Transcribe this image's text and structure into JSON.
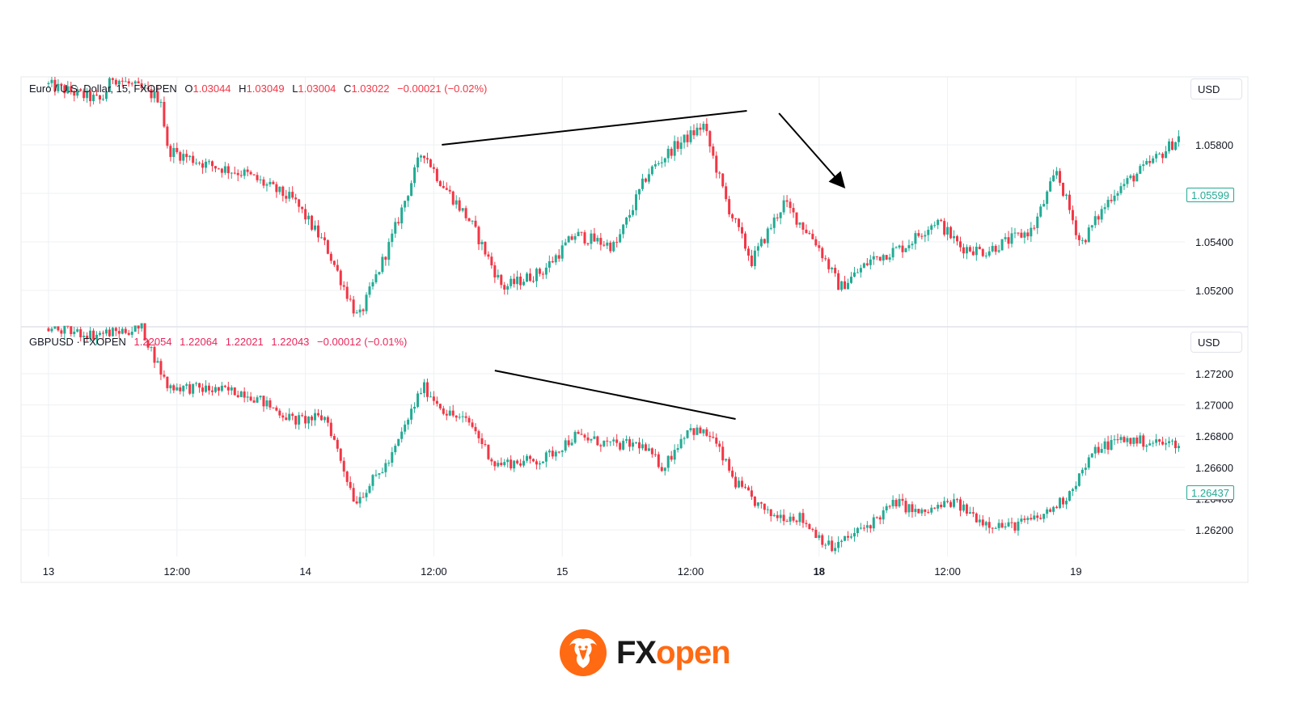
{
  "colors": {
    "up": "#22ab94",
    "down": "#f23645",
    "grid": "#eef0f3",
    "trendline": "#000000",
    "brand_orange": "#ff6a13",
    "brand_dark": "#1a1a1a"
  },
  "chart_data": [
    {
      "type": "candlestick",
      "title": "Euro / U.S. Dollar, 15, FXOPEN",
      "ohlc_header": {
        "o_label": "O",
        "o": "1.03044",
        "h_label": "H",
        "h": "1.03049",
        "l_label": "L",
        "l": "1.03004",
        "c_label": "C",
        "c": "1.03022",
        "change": "−0.00021 (−0.02%)"
      },
      "currency": "USD",
      "yticks": [
        1.058,
        1.056,
        1.054,
        1.052
      ],
      "ytick_labels": [
        "1.05800",
        "1.05600",
        "1.05400",
        "1.05200"
      ],
      "ylim": [
        1.0505,
        1.0608
      ],
      "last_price": "1.05599",
      "last_price_value": 1.05599,
      "key_points": [
        {
          "t": 0,
          "p": 1.0605
        },
        {
          "t": 3.5,
          "p": 1.0598
        },
        {
          "t": 4.2,
          "p": 1.0608
        },
        {
          "t": 7.2,
          "p": 1.0599
        },
        {
          "t": 7.6,
          "p": 1.0578
        },
        {
          "t": 10,
          "p": 1.0572
        },
        {
          "t": 12.5,
          "p": 1.0568
        },
        {
          "t": 15.5,
          "p": 1.0557
        },
        {
          "t": 17.5,
          "p": 1.0538
        },
        {
          "t": 19.5,
          "p": 1.0508
        },
        {
          "t": 21.5,
          "p": 1.054
        },
        {
          "t": 23.5,
          "p": 1.0578
        },
        {
          "t": 24.5,
          "p": 1.0566
        },
        {
          "t": 26.5,
          "p": 1.0548
        },
        {
          "t": 28.5,
          "p": 1.0521
        },
        {
          "t": 31,
          "p": 1.0528
        },
        {
          "t": 33,
          "p": 1.0543
        },
        {
          "t": 35.5,
          "p": 1.0538
        },
        {
          "t": 37.5,
          "p": 1.0568
        },
        {
          "t": 39,
          "p": 1.0578
        },
        {
          "t": 41,
          "p": 1.0588
        },
        {
          "t": 42.5,
          "p": 1.0555
        },
        {
          "t": 44,
          "p": 1.0532
        },
        {
          "t": 46,
          "p": 1.0556
        },
        {
          "t": 48,
          "p": 1.054
        },
        {
          "t": 49.5,
          "p": 1.0521
        },
        {
          "t": 51.5,
          "p": 1.0533
        },
        {
          "t": 53.5,
          "p": 1.0538
        },
        {
          "t": 55.5,
          "p": 1.0549
        },
        {
          "t": 57,
          "p": 1.0538
        },
        {
          "t": 58.5,
          "p": 1.0536
        },
        {
          "t": 61.5,
          "p": 1.0545
        },
        {
          "t": 63,
          "p": 1.0569
        },
        {
          "t": 64.5,
          "p": 1.0539
        },
        {
          "t": 66.5,
          "p": 1.056
        },
        {
          "t": 69.5,
          "p": 1.0576
        },
        {
          "t": 72,
          "p": 1.0592
        },
        {
          "t": 74,
          "p": 1.0601
        },
        {
          "t": 76,
          "p": 1.0598
        },
        {
          "t": 78,
          "p": 1.0593
        },
        {
          "t": 80,
          "p": 1.0598
        },
        {
          "t": 82,
          "p": 1.0587
        },
        {
          "t": 83.5,
          "p": 1.0592
        },
        {
          "t": 84.5,
          "p": 1.0575
        },
        {
          "t": 86,
          "p": 1.0525
        },
        {
          "t": 87.5,
          "p": 1.056
        }
      ]
    },
    {
      "type": "candlestick",
      "title": "GBPUSD · FXOPEN",
      "ohlc_header": {
        "o_label": "",
        "o": "1.22054",
        "h_label": "",
        "h": "1.22064",
        "l_label": "",
        "l": "1.22021",
        "c_label": "",
        "c": "1.22043",
        "change": "−0.00012 (−0.01%)"
      },
      "currency": "USD",
      "yticks": [
        1.272,
        1.27,
        1.268,
        1.266,
        1.264,
        1.262
      ],
      "ytick_labels": [
        "1.27200",
        "1.27000",
        "1.26800",
        "1.26600",
        "1.26400",
        "1.26200"
      ],
      "ylim": [
        1.2603,
        1.275
      ],
      "last_price": "1.26437",
      "last_price_value": 1.26437,
      "key_points": [
        {
          "t": 0,
          "p": 1.2749
        },
        {
          "t": 3,
          "p": 1.2745
        },
        {
          "t": 6,
          "p": 1.2749
        },
        {
          "t": 7.6,
          "p": 1.2712
        },
        {
          "t": 10,
          "p": 1.271
        },
        {
          "t": 12.5,
          "p": 1.2708
        },
        {
          "t": 15.5,
          "p": 1.269
        },
        {
          "t": 17.5,
          "p": 1.2692
        },
        {
          "t": 19.3,
          "p": 1.2638
        },
        {
          "t": 21.5,
          "p": 1.2665
        },
        {
          "t": 23.5,
          "p": 1.2712
        },
        {
          "t": 25,
          "p": 1.2695
        },
        {
          "t": 26.5,
          "p": 1.2688
        },
        {
          "t": 28,
          "p": 1.2662
        },
        {
          "t": 31,
          "p": 1.2665
        },
        {
          "t": 33,
          "p": 1.268
        },
        {
          "t": 35.5,
          "p": 1.2674
        },
        {
          "t": 37,
          "p": 1.2675
        },
        {
          "t": 38.5,
          "p": 1.266
        },
        {
          "t": 40,
          "p": 1.2685
        },
        {
          "t": 41.5,
          "p": 1.268
        },
        {
          "t": 43,
          "p": 1.265
        },
        {
          "t": 45,
          "p": 1.263
        },
        {
          "t": 47,
          "p": 1.2628
        },
        {
          "t": 49,
          "p": 1.2608
        },
        {
          "t": 51.5,
          "p": 1.2625
        },
        {
          "t": 53,
          "p": 1.2638
        },
        {
          "t": 54.5,
          "p": 1.263
        },
        {
          "t": 56.5,
          "p": 1.2638
        },
        {
          "t": 58.5,
          "p": 1.2625
        },
        {
          "t": 60,
          "p": 1.2622
        },
        {
          "t": 62,
          "p": 1.2628
        },
        {
          "t": 63.5,
          "p": 1.264
        },
        {
          "t": 65.5,
          "p": 1.2672
        },
        {
          "t": 67,
          "p": 1.2678
        },
        {
          "t": 70,
          "p": 1.2675
        },
        {
          "t": 72,
          "p": 1.2678
        },
        {
          "t": 73.5,
          "p": 1.2686
        },
        {
          "t": 75.5,
          "p": 1.2672
        },
        {
          "t": 76.5,
          "p": 1.266
        },
        {
          "t": 77.2,
          "p": 1.2618
        },
        {
          "t": 78,
          "p": 1.2644
        }
      ]
    }
  ],
  "x_axis": {
    "ticks": [
      {
        "t": 0,
        "label": "13",
        "bold": false
      },
      {
        "t": 8,
        "label": "12:00",
        "bold": false
      },
      {
        "t": 16,
        "label": "14",
        "bold": false
      },
      {
        "t": 24,
        "label": "12:00",
        "bold": false
      },
      {
        "t": 32,
        "label": "15",
        "bold": false
      },
      {
        "t": 40,
        "label": "12:00",
        "bold": false
      },
      {
        "t": 48,
        "label": "18",
        "bold": true
      },
      {
        "t": 56,
        "label": "12:00",
        "bold": false
      },
      {
        "t": 64,
        "label": "19",
        "bold": false
      }
    ]
  },
  "annotations": [
    {
      "panel": 0,
      "kind": "line",
      "from": {
        "t": 24.5,
        "p": 1.058
      },
      "to": {
        "t": 43.5,
        "p": 1.0594
      }
    },
    {
      "panel": 0,
      "kind": "arrow",
      "from": {
        "t": 45.5,
        "p": 1.0593
      },
      "to": {
        "t": 49.5,
        "p": 1.0563
      }
    },
    {
      "panel": 1,
      "kind": "line",
      "from": {
        "t": 27.8,
        "p": 1.2722
      },
      "to": {
        "t": 42.8,
        "p": 1.2691
      }
    }
  ],
  "logo": {
    "text_fx": "FX",
    "text_open": "open"
  }
}
